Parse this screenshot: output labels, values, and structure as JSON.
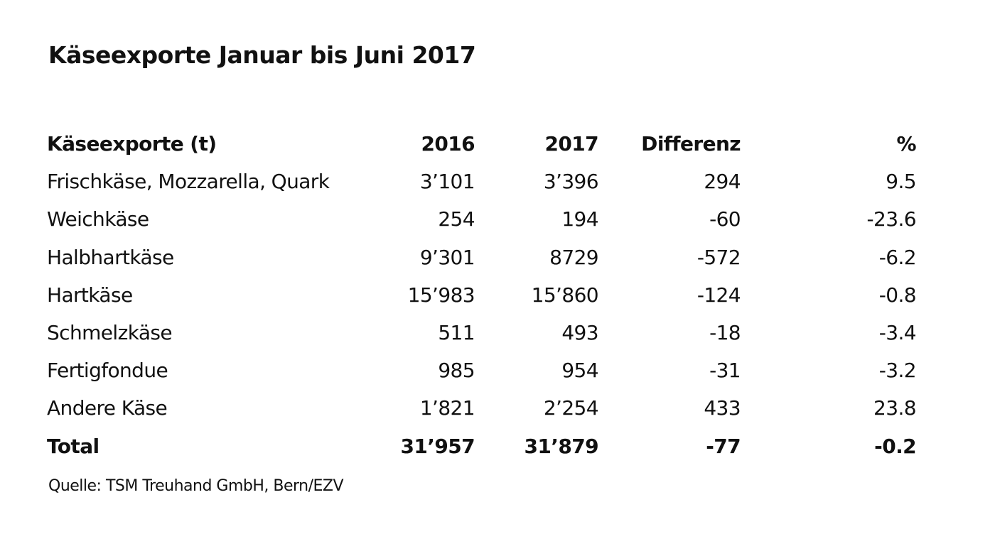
{
  "figure": {
    "title": "Käseexporte Januar bis Juni 2017",
    "source": "Quelle: TSM Treuhand GmbH, Bern/EZV"
  },
  "table": {
    "headers": [
      "Käseexporte (t)",
      "2016",
      "2017",
      "Differenz",
      "%"
    ],
    "rows": [
      {
        "label": "Frischkäse, Mozzarella, Quark",
        "y2016": "3’101",
        "y2017": "3’396",
        "diff": "294",
        "pct": "9.5"
      },
      {
        "label": "Weichkäse",
        "y2016": "254",
        "y2017": "194",
        "diff": "-60",
        "pct": "-23.6"
      },
      {
        "label": "Halbhartkäse",
        "y2016": "9’301",
        "y2017": "8729",
        "diff": "-572",
        "pct": "-6.2"
      },
      {
        "label": "Hartkäse",
        "y2016": "15’983",
        "y2017": "15’860",
        "diff": "-124",
        "pct": "-0.8"
      },
      {
        "label": "Schmelzkäse",
        "y2016": "511",
        "y2017": "493",
        "diff": "-18",
        "pct": "-3.4"
      },
      {
        "label": "Fertigfondue",
        "y2016": "985",
        "y2017": "954",
        "diff": "-31",
        "pct": "-3.2"
      },
      {
        "label": "Andere Käse",
        "y2016": "1’821",
        "y2017": "2’254",
        "diff": "433",
        "pct": "23.8"
      }
    ],
    "total": {
      "label": "Total",
      "y2016": "31’957",
      "y2017": "31’879",
      "diff": "-77",
      "pct": "-0.2"
    }
  },
  "chart_data": {
    "type": "table",
    "title": "Käseexporte Januar bis Juni 2017",
    "columns": [
      "Käseexporte (t)",
      "2016",
      "2017",
      "Differenz",
      "%"
    ],
    "categories": [
      "Frischkäse, Mozzarella, Quark",
      "Weichkäse",
      "Halbhartkäse",
      "Hartkäse",
      "Schmelzkäse",
      "Fertigfondue",
      "Andere Käse",
      "Total"
    ],
    "series": [
      {
        "name": "2016",
        "values": [
          3101,
          254,
          9301,
          15983,
          511,
          985,
          1821,
          31957
        ]
      },
      {
        "name": "2017",
        "values": [
          3396,
          194,
          8729,
          15860,
          493,
          954,
          2254,
          31879
        ]
      },
      {
        "name": "Differenz",
        "values": [
          294,
          -60,
          -572,
          -124,
          -18,
          -31,
          433,
          -77
        ]
      },
      {
        "name": "%",
        "values": [
          9.5,
          -23.6,
          -6.2,
          -0.8,
          -3.4,
          -3.2,
          23.8,
          -0.2
        ]
      }
    ],
    "unit": "t",
    "source": "Quelle: TSM Treuhand GmbH, Bern/EZV"
  }
}
